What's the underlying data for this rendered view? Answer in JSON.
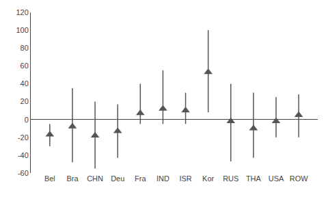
{
  "chart_data": {
    "type": "scatter",
    "categories": [
      "Bel",
      "Bra",
      "CHN",
      "Deu",
      "Fra",
      "IND",
      "ISR",
      "Kor",
      "RUS",
      "THA",
      "USA",
      "ROW"
    ],
    "values": [
      -17,
      -8,
      -18,
      -13,
      7,
      12,
      10,
      53,
      -2,
      -10,
      -2,
      5
    ],
    "ci_low": [
      -30,
      -48,
      -55,
      -43,
      -5,
      -5,
      -5,
      8,
      -47,
      -43,
      -20,
      -20
    ],
    "ci_high": [
      -5,
      35,
      20,
      17,
      40,
      55,
      30,
      100,
      40,
      30,
      25,
      28
    ],
    "ylim": [
      -60,
      120
    ],
    "yticks": [
      -60,
      -40,
      -20,
      0,
      20,
      40,
      60,
      80,
      100,
      120
    ],
    "color": "#555555",
    "marker": "triangle-up",
    "grid": false
  }
}
